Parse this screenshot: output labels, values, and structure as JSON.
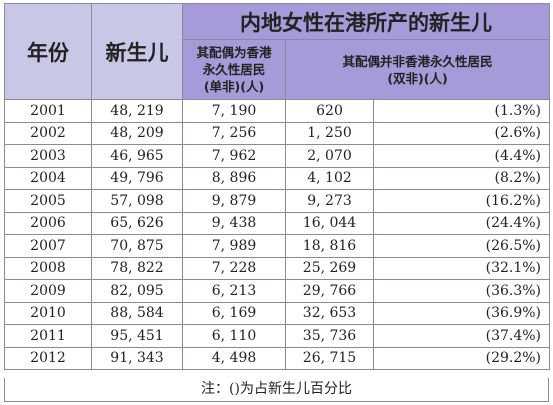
{
  "header": {
    "year": "年份",
    "births": "新生儿",
    "mainland_title": "内地女性在港所产的新生儿",
    "spouse_pr_line1": "其配偶为香港",
    "spouse_pr_line2": "永久性居民",
    "spouse_pr_line3": "(单非)(人)",
    "spouse_nonpr_line1": "其配偶并非香港永久性居民",
    "spouse_nonpr_line2": "(双非)(人)"
  },
  "rows": [
    {
      "year": "2001",
      "births": "48, 219",
      "pr": "7, 190",
      "nonpr": "620",
      "pct": "(1.3%)"
    },
    {
      "year": "2002",
      "births": "48, 209",
      "pr": "7, 256",
      "nonpr": "1, 250",
      "pct": "(2.6%)"
    },
    {
      "year": "2003",
      "births": "46, 965",
      "pr": "7, 962",
      "nonpr": "2, 070",
      "pct": "(4.4%)"
    },
    {
      "year": "2004",
      "births": "49, 796",
      "pr": "8, 896",
      "nonpr": "4, 102",
      "pct": "(8.2%)"
    },
    {
      "year": "2005",
      "births": "57, 098",
      "pr": "9, 879",
      "nonpr": "9, 273",
      "pct": "(16.2%)"
    },
    {
      "year": "2006",
      "births": "65, 626",
      "pr": "9, 438",
      "nonpr": "16, 044",
      "pct": "(24.4%)"
    },
    {
      "year": "2007",
      "births": "70, 875",
      "pr": "7, 989",
      "nonpr": "18, 816",
      "pct": "(26.5%)"
    },
    {
      "year": "2008",
      "births": "78, 822",
      "pr": "7, 228",
      "nonpr": "25, 269",
      "pct": "(32.1%)"
    },
    {
      "year": "2009",
      "births": "82, 095",
      "pr": "6, 213",
      "nonpr": "29, 766",
      "pct": "(36.3%)"
    },
    {
      "year": "2010",
      "births": "88, 584",
      "pr": "6, 169",
      "nonpr": "32, 653",
      "pct": "(36.9%)"
    },
    {
      "year": "2011",
      "births": "95, 451",
      "pr": "6, 110",
      "nonpr": "35, 736",
      "pct": "(37.4%)"
    },
    {
      "year": "2012",
      "births": "91, 343",
      "pr": "4, 498",
      "nonpr": "26, 715",
      "pct": "(29.2%)"
    }
  ],
  "note": "注：()为占新生儿百分比"
}
